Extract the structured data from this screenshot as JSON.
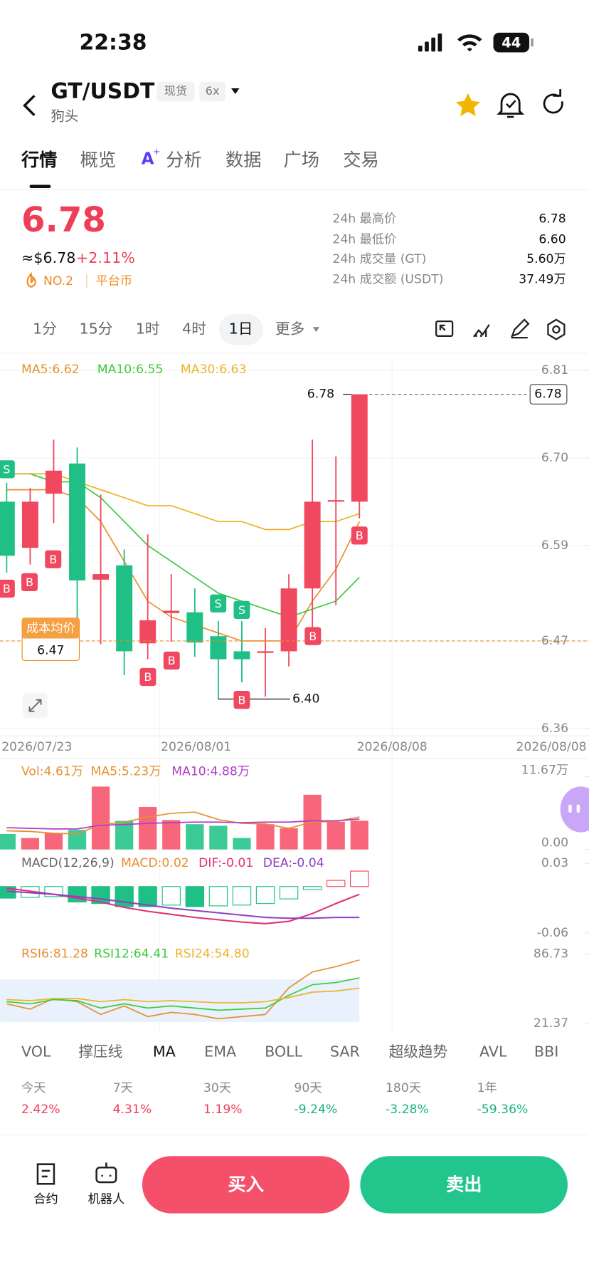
{
  "status_bar": {
    "time": "22:38",
    "battery": "44"
  },
  "header": {
    "pair": "GT/USDT",
    "market": "现货",
    "leverage": "6x",
    "alias": "狗头"
  },
  "tabs": [
    "行情",
    "概览",
    "分析",
    "数据",
    "广场",
    "交易"
  ],
  "ticker": {
    "price": "6.78",
    "usd_price": "≈$6.78",
    "change": "+2.11%",
    "rank": "NO.2",
    "tag": "平台币"
  },
  "stats": [
    [
      "24h 最高价",
      "6.78"
    ],
    [
      "24h 最低价",
      "6.60"
    ],
    [
      "24h 成交量 (GT)",
      "5.60万"
    ],
    [
      "24h 成交额 (USDT)",
      "37.49万"
    ]
  ],
  "intervals": [
    "1分",
    "15分",
    "1时",
    "4时",
    "1日",
    "更多"
  ],
  "chart_data": [
    {
      "type": "candlestick",
      "open": [
        6.645,
        6.587,
        6.655,
        6.693,
        6.547,
        6.565,
        6.467,
        6.505,
        6.506,
        6.476,
        6.457,
        6.455,
        6.457,
        6.536,
        6.645,
        6.645
      ],
      "high": [
        6.669,
        6.662,
        6.723,
        6.713,
        6.654,
        6.585,
        6.604,
        6.554,
        6.536,
        6.495,
        6.495,
        6.486,
        6.554,
        6.723,
        6.702,
        6.78
      ],
      "low": [
        6.556,
        6.566,
        6.618,
        6.484,
        6.466,
        6.427,
        6.447,
        6.469,
        6.45,
        6.397,
        6.418,
        6.4,
        6.438,
        6.484,
        6.515,
        6.624
      ],
      "close": [
        6.577,
        6.645,
        6.684,
        6.546,
        6.554,
        6.457,
        6.496,
        6.508,
        6.468,
        6.447,
        6.447,
        6.457,
        6.536,
        6.645,
        6.647,
        6.78
      ],
      "series": [
        {
          "name": "MA5:6.62",
          "color": "#E8902F",
          "values": [
            6.66,
            6.66,
            6.66,
            6.65,
            6.62,
            6.57,
            6.52,
            6.5,
            6.49,
            6.48,
            6.47,
            6.47,
            6.47,
            6.52,
            6.56,
            6.62
          ]
        },
        {
          "name": "MA10:6.55",
          "color": "#3DCB3D",
          "values": [
            6.68,
            6.68,
            6.67,
            6.67,
            6.65,
            6.62,
            6.59,
            6.57,
            6.55,
            6.53,
            6.52,
            6.51,
            6.5,
            6.51,
            6.52,
            6.55
          ]
        },
        {
          "name": "MA30:6.63",
          "color": "#EBB42A",
          "values": [
            6.68,
            6.68,
            6.68,
            6.67,
            6.66,
            6.65,
            6.64,
            6.64,
            6.63,
            6.62,
            6.62,
            6.61,
            6.61,
            6.62,
            6.62,
            6.63
          ]
        }
      ],
      "up_color": "#F0485F",
      "down_color": "#1FBF85",
      "ylim": [
        6.36,
        6.81
      ],
      "yticks": [
        6.81,
        {
          "value": 6.7,
          "label": "6.70"
        },
        6.59,
        6.47,
        6.36
      ],
      "x_labels": [
        "2026/07/23",
        "2026/08/01",
        "2026/08/08",
        "2026/08/08"
      ],
      "last_price_tag": "6.78",
      "high_label": "6.78",
      "low_label": "6.40",
      "cost_label": "成本均价",
      "cost_value": 6.47,
      "trade_markers": [
        "S",
        "B",
        "B",
        "B",
        "B",
        "B",
        "S",
        "S",
        "B",
        "B",
        "B"
      ]
    },
    {
      "type": "volume",
      "series": [
        {
          "name": "Vol:4.61万",
          "color": "#E8902F",
          "values": [
            2.49,
            1.84,
            2.62,
            3.15,
            10.09,
            4.59,
            6.82,
            4.72,
            4.06,
            3.8,
            1.84,
            4.06,
            3.41,
            8.78,
            4.46,
            4.61
          ]
        },
        {
          "name": "MA5:5.23万",
          "color": "#E8902F",
          "values": [
            3.0,
            2.9,
            2.6,
            2.5,
            4.0,
            4.4,
            5.2,
            5.8,
            6.0,
            4.8,
            4.2,
            4.1,
            3.4,
            4.4,
            4.5,
            5.23
          ]
        },
        {
          "name": "MA10:4.88万",
          "color": "#B23CC8",
          "values": [
            3.5,
            3.4,
            3.3,
            3.3,
            3.9,
            4.0,
            4.2,
            4.3,
            4.4,
            4.4,
            4.3,
            4.4,
            4.4,
            4.6,
            4.6,
            4.88
          ]
        }
      ],
      "ylim": [
        0,
        11.67
      ],
      "yticks": [
        {
          "value": 11.67,
          "label": "11.67万"
        },
        {
          "value": 0,
          "label": "0.00"
        }
      ]
    },
    {
      "type": "macd",
      "title": "MACD(12,26,9)",
      "series": [
        {
          "name": "MACD:0.02",
          "color": "#E8902F",
          "values": [
            -0.015,
            -0.014,
            -0.013,
            -0.02,
            -0.022,
            -0.026,
            -0.026,
            -0.024,
            -0.026,
            -0.025,
            -0.024,
            -0.022,
            -0.016,
            -0.004,
            0.008,
            0.02
          ]
        },
        {
          "name": "DIF:-0.01",
          "color": "#E0307A",
          "values": [
            -0.002,
            -0.006,
            -0.01,
            -0.015,
            -0.02,
            -0.027,
            -0.032,
            -0.036,
            -0.04,
            -0.043,
            -0.046,
            -0.048,
            -0.045,
            -0.035,
            -0.022,
            -0.01
          ]
        },
        {
          "name": "DEA:-0.04",
          "color": "#8E3FC4",
          "values": [
            -0.006,
            -0.008,
            -0.01,
            -0.013,
            -0.016,
            -0.02,
            -0.024,
            -0.028,
            -0.031,
            -0.034,
            -0.037,
            -0.04,
            -0.041,
            -0.041,
            -0.04,
            -0.04
          ]
        }
      ],
      "ylim": [
        -0.06,
        0.03
      ],
      "yticks": [
        0.03,
        -0.06
      ]
    },
    {
      "type": "line",
      "series": [
        {
          "name": "RSI6:81.28",
          "color": "#E8902F",
          "values": [
            40,
            35,
            45,
            42,
            30,
            38,
            28,
            32,
            30,
            26,
            28,
            30,
            55,
            70,
            75,
            81.28
          ]
        },
        {
          "name": "RSI12:64.41",
          "color": "#3DCB3D",
          "values": [
            42,
            40,
            44,
            43,
            36,
            40,
            36,
            38,
            36,
            34,
            35,
            36,
            48,
            58,
            60,
            64.41
          ]
        },
        {
          "name": "RSI24:54.80",
          "color": "#EBB42A",
          "values": [
            44,
            43,
            45,
            45,
            42,
            44,
            42,
            43,
            42,
            41,
            41,
            42,
            46,
            51,
            52,
            54.8
          ]
        }
      ],
      "ylim": [
        21.37,
        86.73
      ],
      "yticks": [
        86.73,
        21.37
      ]
    }
  ],
  "indicators": [
    "VOL",
    "撑压线",
    "MA",
    "EMA",
    "BOLL",
    "SAR",
    "超级趋势",
    "AVL",
    "BBI"
  ],
  "returns": [
    [
      "今天",
      "2.42%"
    ],
    [
      "7天",
      "4.31%"
    ],
    [
      "30天",
      "1.19%"
    ],
    [
      "90天",
      "-9.24%"
    ],
    [
      "180天",
      "-3.28%"
    ],
    [
      "1年",
      "-59.36%"
    ]
  ],
  "actions": [
    "合约",
    "机器人"
  ],
  "buttons": [
    "买入",
    "卖出"
  ]
}
